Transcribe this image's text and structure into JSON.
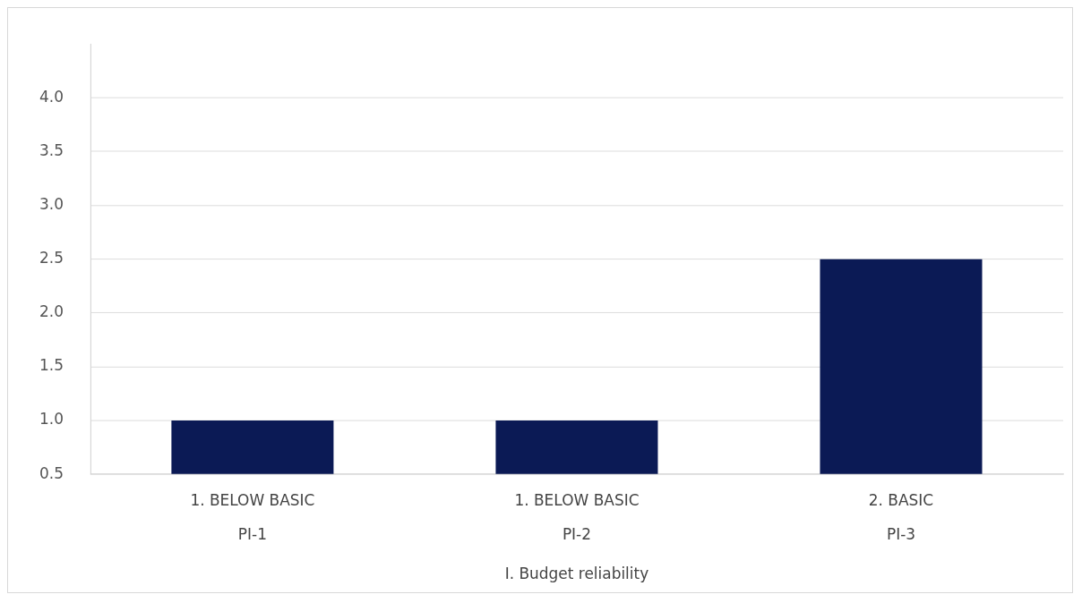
{
  "chart_data": {
    "type": "bar",
    "categories": [
      "1. BELOW BASIC\nPI-1",
      "1. BELOW BASIC\nPI-2",
      "2. BASIC\nPI-3"
    ],
    "xlabel": "I. Budget reliability",
    "values": [
      1,
      1,
      2.5
    ],
    "color": "#0b1a55",
    "ylim": [
      0.5,
      4.5
    ],
    "yticks": [
      0.5,
      {
        "value": 1,
        "label": "1.0"
      },
      1.5,
      {
        "value": 2,
        "label": "2.0"
      },
      2.5,
      {
        "value": 3,
        "label": "3.0"
      },
      3.5,
      {
        "value": 4,
        "label": "4.0"
      }
    ],
    "grid": "y",
    "legend": false
  }
}
